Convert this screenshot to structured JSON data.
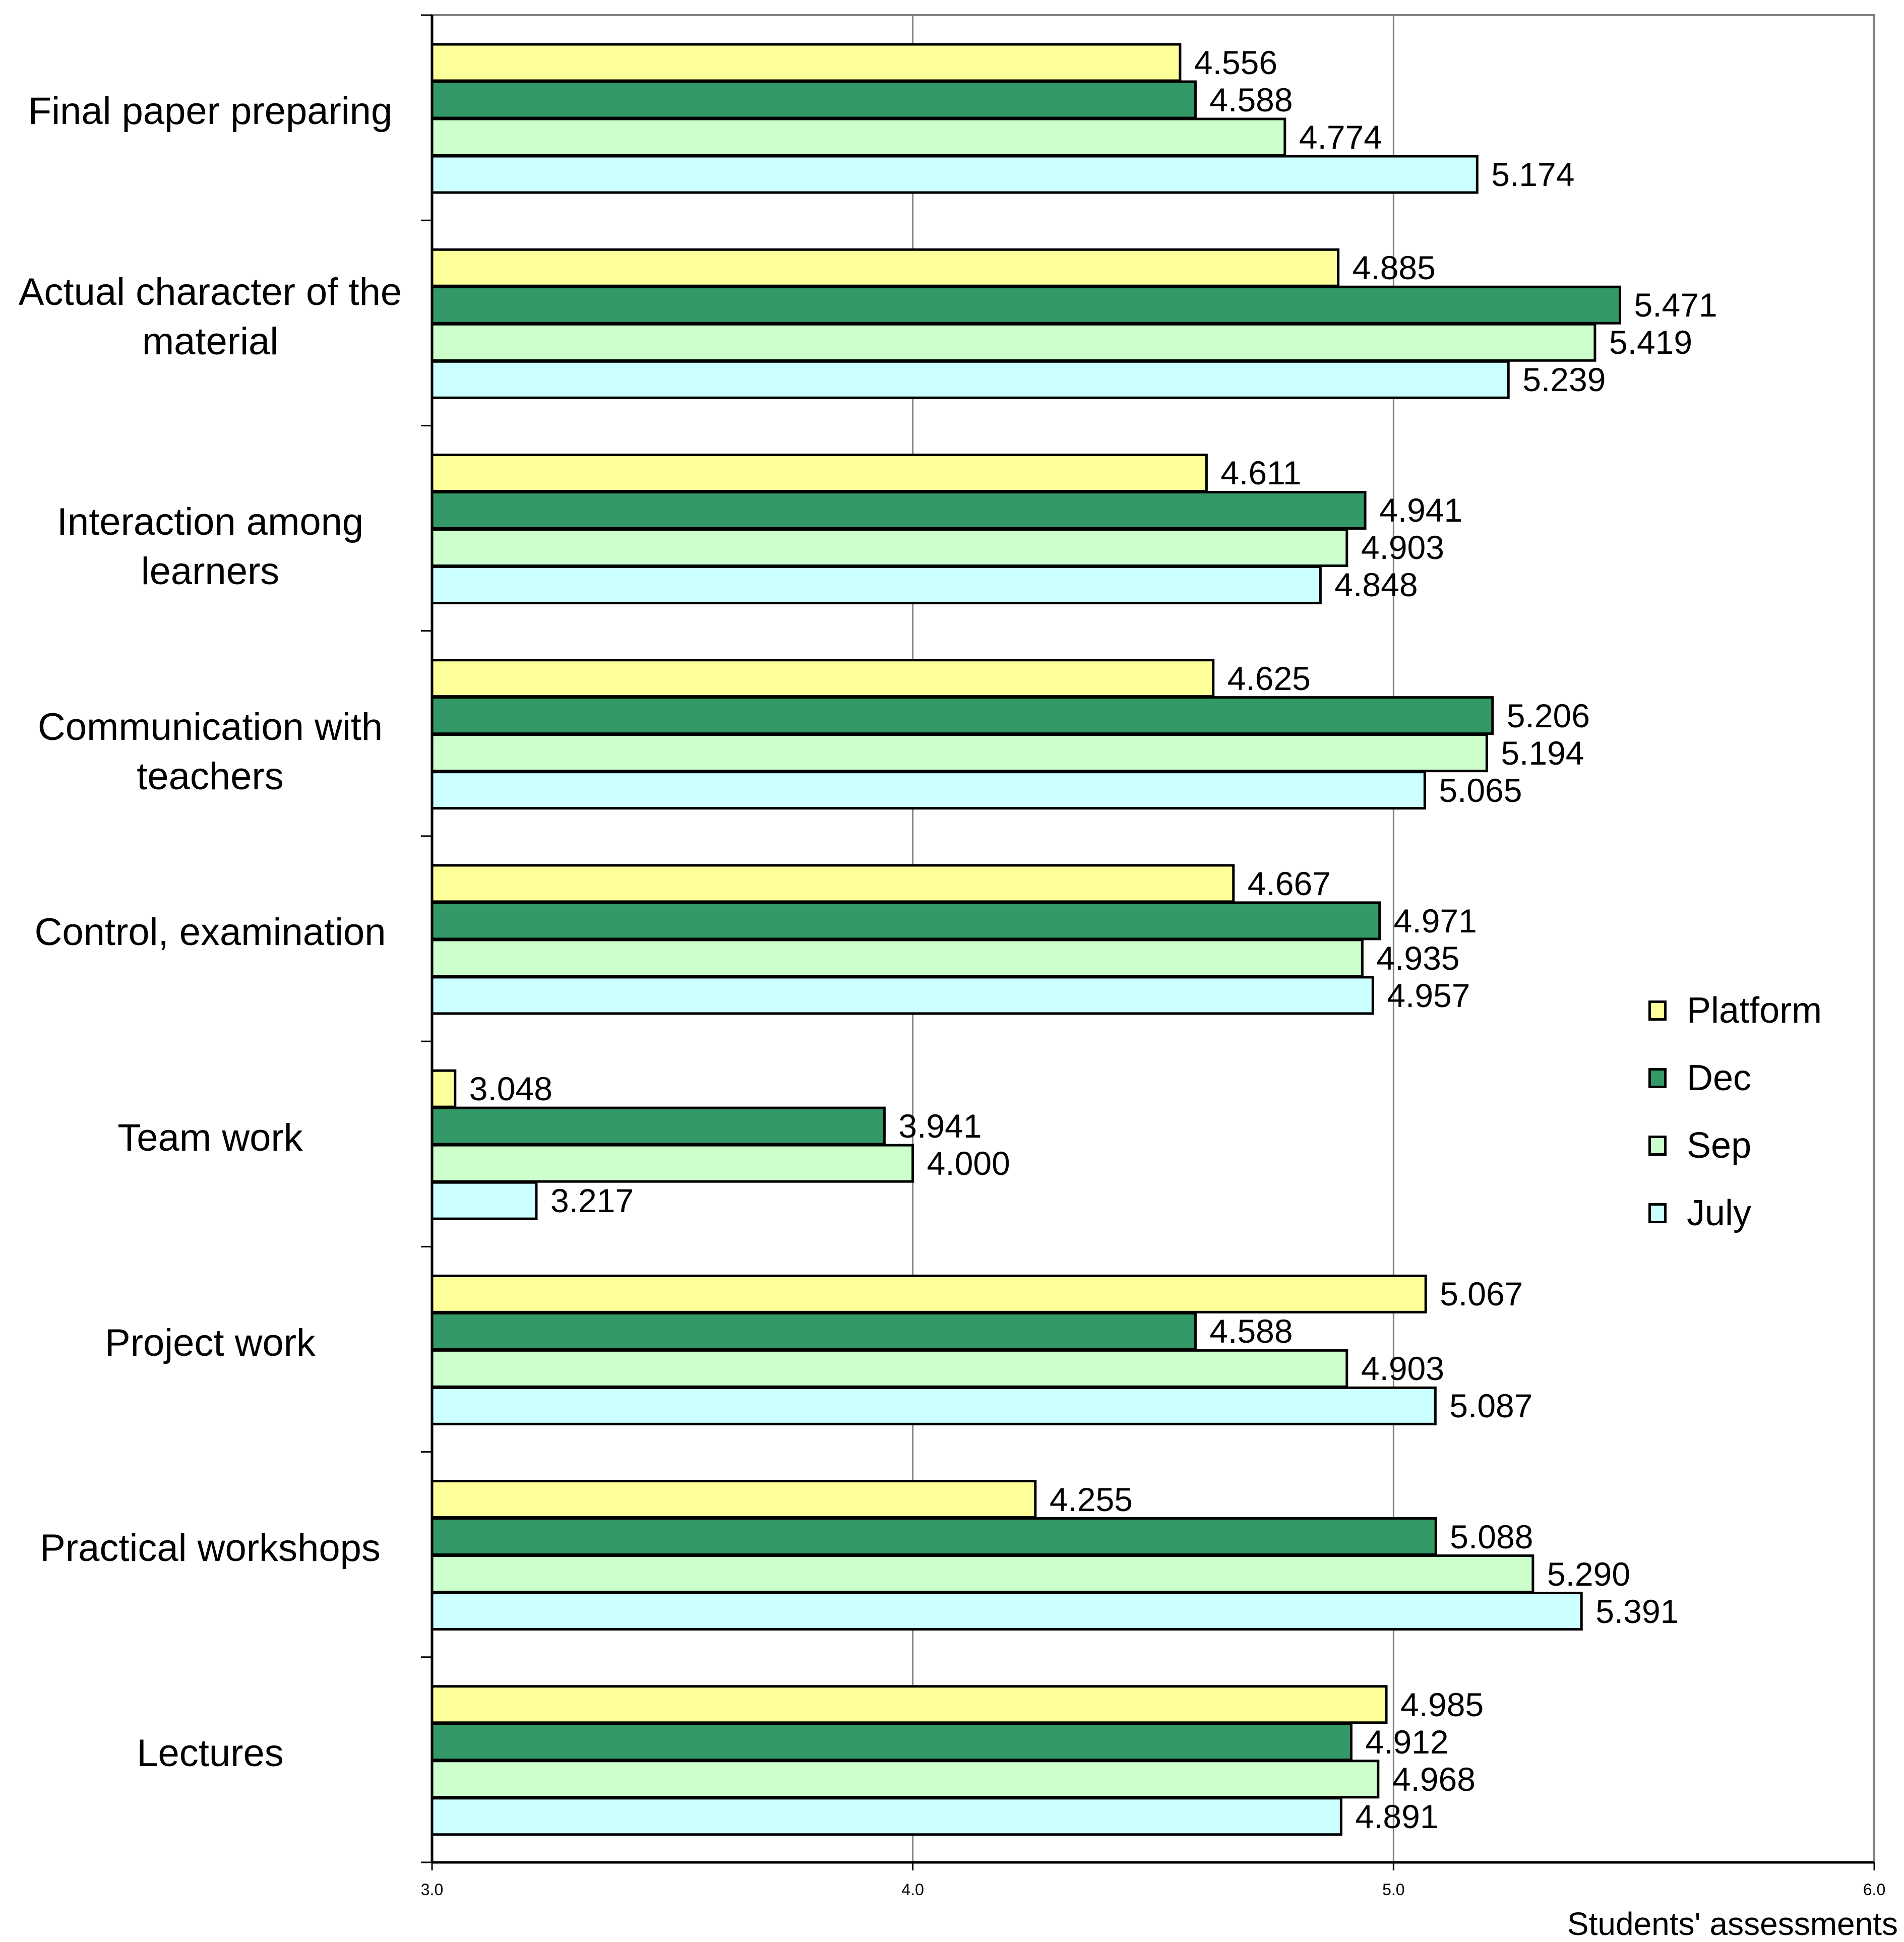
{
  "chart_data": {
    "type": "bar",
    "orientation": "horizontal",
    "title": "",
    "xlabel": "Students' assessments",
    "ylabel": "",
    "xlim": [
      3.0,
      6.0
    ],
    "x_ticks": [
      "3.0",
      "4.0",
      "5.0",
      "6.0"
    ],
    "grid": "vertical",
    "legend_position": "right",
    "categories": [
      "Final paper preparing",
      "Actual character of the material",
      "Interaction among learners",
      "Communication with teachers",
      "Control, examination",
      "Team work",
      "Project work",
      "Practical workshops",
      "Lectures"
    ],
    "series": [
      {
        "name": "Platform",
        "color": "#ffff99",
        "values": [
          4.556,
          4.885,
          4.611,
          4.625,
          4.667,
          3.048,
          5.067,
          4.255,
          4.985
        ],
        "labels": [
          "4.556",
          "4.885",
          "4.611",
          "4.625",
          "4.667",
          "3.048",
          "5.067",
          "4.255",
          "4.985"
        ]
      },
      {
        "name": "Dec",
        "color": "#339966",
        "values": [
          4.588,
          5.471,
          4.941,
          5.206,
          4.971,
          3.941,
          4.588,
          5.088,
          4.912
        ],
        "labels": [
          "4.588",
          "5.471",
          "4.941",
          "5.206",
          "4.971",
          "3.941",
          "4.588",
          "5.088",
          "4.912"
        ]
      },
      {
        "name": "Sep",
        "color": "#ccffcc",
        "values": [
          4.774,
          5.419,
          4.903,
          5.194,
          4.935,
          4.0,
          4.903,
          5.29,
          4.968
        ],
        "labels": [
          "4.774",
          "5.419",
          "4.903",
          "5.194",
          "4.935",
          "4.000",
          "4.903",
          "5.290",
          "4.968"
        ]
      },
      {
        "name": "July",
        "color": "#ccffff",
        "values": [
          5.174,
          5.239,
          4.848,
          5.065,
          4.957,
          3.217,
          5.087,
          5.391,
          4.891
        ],
        "labels": [
          "5.174",
          "5.239",
          "4.848",
          "5.065",
          "4.957",
          "3.217",
          "5.087",
          "5.391",
          "4.891"
        ]
      }
    ]
  }
}
